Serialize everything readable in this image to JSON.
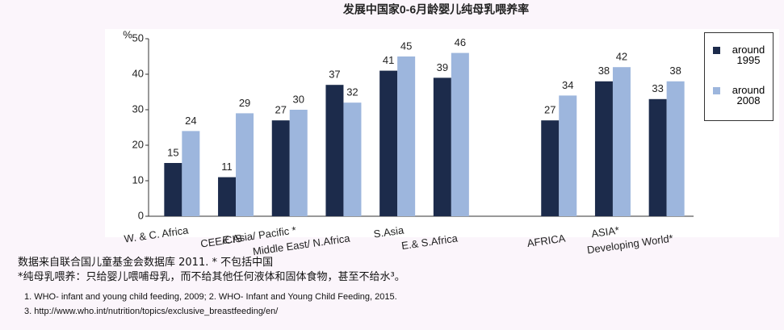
{
  "chart_data": {
    "type": "bar",
    "title": "发展中国家0-6月龄婴儿纯母乳喂养率",
    "y_label": "%",
    "categories": [
      "W. & C. Africa",
      "CEE/CIS",
      "E.Asia/ Pacific *",
      "Middle East/ N.Africa",
      "S.Asia",
      "E.& S.Africa",
      null,
      "AFRICA",
      "ASIA*",
      "Developing World*"
    ],
    "series": [
      {
        "name": "around 1995",
        "color": "#1c2b4b",
        "values": [
          15,
          11,
          27,
          37,
          41,
          39,
          null,
          27,
          38,
          33
        ]
      },
      {
        "name": "around 2008",
        "color": "#9db6dd",
        "values": [
          24,
          29,
          30,
          32,
          45,
          46,
          null,
          34,
          42,
          38
        ]
      }
    ],
    "ylim": [
      0,
      50
    ],
    "yticks": [
      0,
      10,
      20,
      30,
      40,
      50
    ],
    "legend": "right",
    "notes": [
      "数据来自联合国儿童基金会数据库 2011. * 不包括中国",
      "*纯母乳喂养：只给婴儿喂哺母乳，而不给其他任何液体和固体食物，甚至不给水³。"
    ],
    "references": [
      "1. WHO- infant and young child feeding, 2009; 2. WHO- Infant and Young Child Feeding, 2015.",
      "3. http://www.who.int/nutrition/topics/exclusive_breastfeeding/en/"
    ]
  }
}
